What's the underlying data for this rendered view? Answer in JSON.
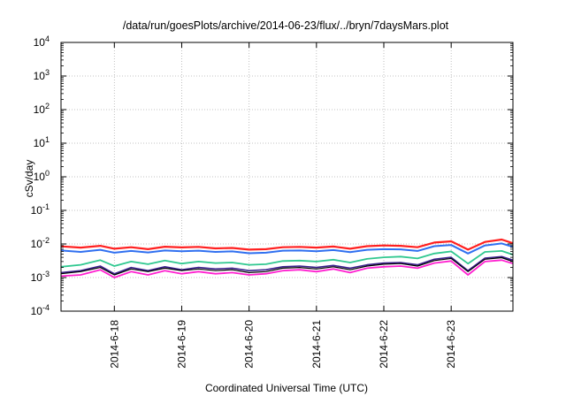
{
  "chart_data": {
    "type": "line",
    "title": "/data/run/goesPlots/archive/2014-06-23/flux/../bryn/7daysMars.plot",
    "xlabel": "Coordinated Universal Time (UTC)",
    "ylabel": "cSv/day",
    "y_scale": "log",
    "ylim": [
      0.0001,
      10000
    ],
    "xlim": [
      "2014-06-17T05:00",
      "2014-06-23T22:00"
    ],
    "grid": true,
    "y_ticks": [
      {
        "value": 0.0001,
        "base": "10",
        "exp": "-4"
      },
      {
        "value": 0.001,
        "base": "10",
        "exp": "-3"
      },
      {
        "value": 0.01,
        "base": "10",
        "exp": "-2"
      },
      {
        "value": 0.1,
        "base": "10",
        "exp": "-1"
      },
      {
        "value": 1,
        "base": "10",
        "exp": "0"
      },
      {
        "value": 10,
        "base": "10",
        "exp": "1"
      },
      {
        "value": 100,
        "base": "10",
        "exp": "2"
      },
      {
        "value": 1000,
        "base": "10",
        "exp": "3"
      },
      {
        "value": 10000,
        "base": "10",
        "exp": "4"
      }
    ],
    "x_ticks": [
      {
        "value": "2014-06-18T00:00",
        "label": "2014-6-18"
      },
      {
        "value": "2014-06-19T00:00",
        "label": "2014-6-19"
      },
      {
        "value": "2014-06-20T00:00",
        "label": "2014-6-20"
      },
      {
        "value": "2014-06-21T00:00",
        "label": "2014-6-21"
      },
      {
        "value": "2014-06-22T00:00",
        "label": "2014-6-22"
      },
      {
        "value": "2014-06-23T00:00",
        "label": "2014-6-23"
      }
    ],
    "x": [
      "2014-06-17T05:00",
      "2014-06-17T12:00",
      "2014-06-17T19:00",
      "2014-06-18T00:00",
      "2014-06-18T06:00",
      "2014-06-18T12:00",
      "2014-06-18T18:00",
      "2014-06-19T00:00",
      "2014-06-19T06:00",
      "2014-06-19T12:00",
      "2014-06-19T18:00",
      "2014-06-20T00:00",
      "2014-06-20T06:00",
      "2014-06-20T12:00",
      "2014-06-20T18:00",
      "2014-06-21T00:00",
      "2014-06-21T06:00",
      "2014-06-21T12:00",
      "2014-06-21T18:00",
      "2014-06-22T00:00",
      "2014-06-22T06:00",
      "2014-06-22T12:00",
      "2014-06-22T18:00",
      "2014-06-23T00:00",
      "2014-06-23T06:00",
      "2014-06-23T12:00",
      "2014-06-23T18:00",
      "2014-06-23T22:00"
    ],
    "series": [
      {
        "color": "#ff2020",
        "width": 2.2,
        "values": [
          0.0085,
          0.0078,
          0.0088,
          0.0072,
          0.008,
          0.007,
          0.0083,
          0.0079,
          0.0082,
          0.0074,
          0.0076,
          0.0068,
          0.007,
          0.008,
          0.0082,
          0.0078,
          0.0084,
          0.0072,
          0.0086,
          0.009,
          0.0088,
          0.008,
          0.011,
          0.012,
          0.0068,
          0.0115,
          0.0135,
          0.0105
        ]
      },
      {
        "color": "#3070f0",
        "width": 2.0,
        "values": [
          0.0064,
          0.0058,
          0.0067,
          0.0055,
          0.0062,
          0.0056,
          0.0064,
          0.0061,
          0.0063,
          0.0058,
          0.006,
          0.0053,
          0.0055,
          0.0063,
          0.0064,
          0.0061,
          0.0066,
          0.0057,
          0.0067,
          0.007,
          0.0069,
          0.0062,
          0.0086,
          0.0093,
          0.0052,
          0.009,
          0.0104,
          0.0082
        ]
      },
      {
        "color": "#30c890",
        "width": 1.8,
        "values": [
          0.0021,
          0.0024,
          0.0033,
          0.0022,
          0.003,
          0.0025,
          0.0032,
          0.0026,
          0.003,
          0.0027,
          0.0028,
          0.0024,
          0.0025,
          0.0031,
          0.0032,
          0.003,
          0.0034,
          0.0028,
          0.0036,
          0.004,
          0.0042,
          0.0037,
          0.0052,
          0.006,
          0.0026,
          0.0058,
          0.0062,
          0.0048
        ]
      },
      {
        "color": "#3a1f8c",
        "width": 1.6,
        "values": [
          0.0014,
          0.0016,
          0.0022,
          0.0013,
          0.002,
          0.0016,
          0.0021,
          0.0017,
          0.002,
          0.0018,
          0.0019,
          0.0016,
          0.0017,
          0.0021,
          0.0022,
          0.002,
          0.0023,
          0.0019,
          0.0024,
          0.0027,
          0.0028,
          0.0024,
          0.0035,
          0.004,
          0.0016,
          0.0038,
          0.0042,
          0.0033
        ]
      },
      {
        "color": "#000000",
        "width": 1.2,
        "values": [
          0.0013,
          0.0015,
          0.002,
          0.0012,
          0.0018,
          0.0015,
          0.0019,
          0.0016,
          0.0018,
          0.0016,
          0.0017,
          0.0014,
          0.0015,
          0.0019,
          0.002,
          0.0018,
          0.0021,
          0.0017,
          0.0022,
          0.0025,
          0.0026,
          0.0022,
          0.0032,
          0.0037,
          0.0015,
          0.0035,
          0.0039,
          0.003
        ]
      },
      {
        "color": "#ff20d0",
        "width": 1.8,
        "values": [
          0.0011,
          0.0012,
          0.0017,
          0.001,
          0.0015,
          0.0012,
          0.0016,
          0.0013,
          0.0015,
          0.0013,
          0.0014,
          0.0012,
          0.0013,
          0.0016,
          0.0017,
          0.0015,
          0.0018,
          0.0014,
          0.0019,
          0.0021,
          0.0022,
          0.0019,
          0.0027,
          0.0031,
          0.0012,
          0.003,
          0.0033,
          0.0026
        ]
      }
    ]
  }
}
